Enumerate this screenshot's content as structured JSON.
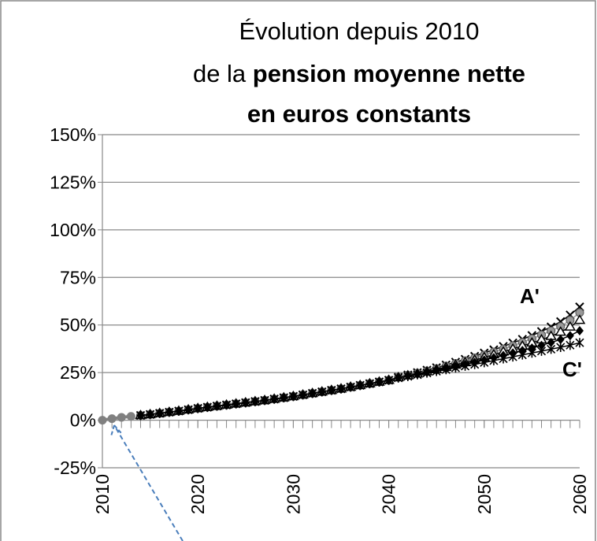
{
  "chart_data": {
    "type": "line",
    "title": [
      [
        {
          "text": "Évolution depuis 2010",
          "bold": false
        }
      ],
      [
        {
          "text": "de la ",
          "bold": false
        },
        {
          "text": "pension moyenne nette",
          "bold": true
        }
      ],
      [
        {
          "text": "en euros constants",
          "bold": true
        }
      ]
    ],
    "annotations": [
      "A'",
      "C'"
    ],
    "x": [
      2014,
      2015,
      2016,
      2017,
      2018,
      2019,
      2020,
      2021,
      2022,
      2023,
      2024,
      2025,
      2026,
      2027,
      2028,
      2029,
      2030,
      2031,
      2032,
      2033,
      2034,
      2035,
      2036,
      2037,
      2038,
      2039,
      2040,
      2041,
      2042,
      2043,
      2044,
      2045,
      2046,
      2047,
      2048,
      2049,
      2050,
      2051,
      2052,
      2053,
      2054,
      2055,
      2056,
      2057,
      2058,
      2059,
      2060
    ],
    "series": [
      {
        "color": "#808080",
        "marker": "circle",
        "x": [
          2010,
          2011,
          2012,
          2013
        ],
        "values": [
          0,
          0.8,
          1.5,
          2
        ]
      },
      {
        "color": "#000000",
        "marker": "x",
        "values": [
          2.5,
          3,
          3.6,
          4.2,
          4.8,
          5.5,
          6.2,
          6.8,
          7.4,
          8,
          8.6,
          9.2,
          9.8,
          10.4,
          11.1,
          11.8,
          12.5,
          13.3,
          14.1,
          14.9,
          15.7,
          16.5,
          17.4,
          18.3,
          19.2,
          20.1,
          21,
          22.6,
          23.8,
          25,
          26.3,
          27.6,
          29,
          30.5,
          32,
          33.6,
          35.3,
          37,
          38.8,
          40.6,
          42.5,
          44.5,
          46.6,
          49,
          51.8,
          55.3,
          59.5
        ]
      },
      {
        "color": "#999999",
        "marker": "circle",
        "values": [
          2.5,
          3,
          3.6,
          4.2,
          4.8,
          5.5,
          6.2,
          6.8,
          7.4,
          8,
          8.6,
          9.2,
          9.8,
          10.4,
          11.1,
          11.8,
          12.5,
          13.3,
          14.1,
          14.9,
          15.7,
          16.5,
          17.4,
          18.3,
          19.2,
          20.1,
          21,
          22.5,
          23.6,
          24.7,
          25.9,
          27.1,
          28.4,
          29.8,
          31.2,
          32.7,
          34.2,
          35.8,
          37.4,
          39.1,
          40.9,
          42.8,
          44.8,
          46.9,
          49.2,
          52.5,
          56.5
        ]
      },
      {
        "color": "#000000",
        "marker": "triangle",
        "values": [
          2.5,
          3,
          3.6,
          4.2,
          4.8,
          5.5,
          6.2,
          6.8,
          7.4,
          8,
          8.6,
          9.2,
          9.8,
          10.4,
          11.1,
          11.8,
          12.5,
          13.3,
          14.1,
          14.9,
          15.7,
          16.5,
          17.4,
          18.3,
          19.2,
          20.1,
          21,
          22.4,
          23.4,
          24.4,
          25.5,
          26.6,
          27.8,
          29,
          30.3,
          31.6,
          33,
          34.4,
          35.9,
          37.4,
          39,
          40.6,
          42.3,
          44.1,
          46.3,
          49,
          52.5
        ]
      },
      {
        "color": "#000000",
        "marker": "diamond",
        "values": [
          2.5,
          3,
          3.6,
          4.2,
          4.8,
          5.5,
          6.2,
          6.8,
          7.4,
          8,
          8.6,
          9.2,
          9.8,
          10.4,
          11.1,
          11.8,
          12.5,
          13.3,
          14.1,
          14.9,
          15.7,
          16.5,
          17.4,
          18.3,
          19.2,
          20.1,
          21,
          22.3,
          23.2,
          24.1,
          25.1,
          26.1,
          27.1,
          28.2,
          29.3,
          30.4,
          31.6,
          32.8,
          34,
          35.3,
          36.6,
          37.9,
          39.3,
          40.8,
          42.4,
          44.4,
          47
        ]
      },
      {
        "color": "#000000",
        "marker": "star",
        "values": [
          2.5,
          3,
          3.6,
          4.2,
          4.8,
          5.5,
          6.2,
          6.8,
          7.4,
          8,
          8.6,
          9.2,
          9.8,
          10.4,
          11.1,
          11.8,
          12.5,
          13.3,
          14.1,
          14.9,
          15.7,
          16.5,
          17.4,
          18.3,
          19.2,
          20.1,
          21,
          22.2,
          23,
          23.9,
          24.8,
          25.7,
          26.6,
          27.5,
          28.4,
          29.3,
          30.3,
          31.3,
          32.3,
          33.3,
          34.3,
          35.3,
          36.3,
          37.3,
          38.3,
          39.4,
          40.7
        ]
      }
    ],
    "xlim": [
      2010,
      2060
    ],
    "xticks": [
      2010,
      2020,
      2030,
      2040,
      2050,
      2060
    ],
    "x_minor_tick_interval": 1,
    "ylim": [
      -25,
      150
    ],
    "yticks": [
      {
        "value": -25,
        "label": "-25%"
      },
      {
        "value": 0,
        "label": "0%"
      },
      {
        "value": 25,
        "label": "25%"
      },
      {
        "value": 50,
        "label": "50%"
      },
      {
        "value": 75,
        "label": "75%"
      },
      {
        "value": 100,
        "label": "100%"
      },
      {
        "value": 125,
        "label": "125%"
      },
      {
        "value": 150,
        "label": "150%"
      }
    ],
    "grid": true
  }
}
